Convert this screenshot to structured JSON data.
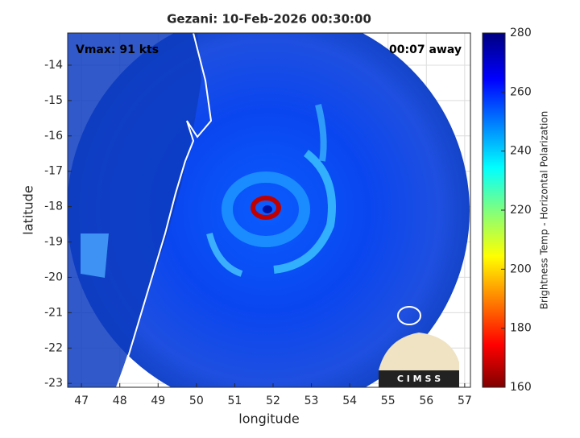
{
  "chart_data": {
    "type": "image",
    "title": "Gezani: 10-Feb-2026 00:30:00",
    "annotations": [
      "Vmax: 91 kts",
      "00:07 away"
    ],
    "logo": "C I M S S",
    "xlabel": "longitude",
    "ylabel": "latitude",
    "xlim": [
      46.64,
      57.15
    ],
    "ylim": [
      -23.11,
      -13.09
    ],
    "xticks": [
      47,
      48,
      49,
      50,
      51,
      52,
      53,
      54,
      55,
      56,
      57
    ],
    "yticks": [
      -14,
      -15,
      -16,
      -17,
      -18,
      -19,
      -20,
      -21,
      -22,
      -23
    ],
    "grid": true,
    "colorbar": {
      "label": "Brightness Temp - Horizontal Polarization",
      "lim": [
        160,
        280
      ],
      "ticks": [
        160,
        180,
        200,
        220,
        240,
        260,
        280
      ],
      "colormap": "jet"
    }
  }
}
